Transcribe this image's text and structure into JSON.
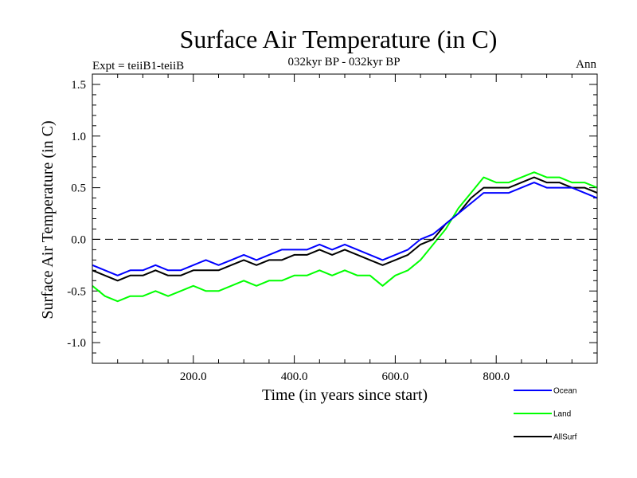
{
  "chart_data": {
    "type": "line",
    "title": "Surface Air Temperature (in C)",
    "subtitle": "032kyr BP - 032kyr BP",
    "left_label": "Expt = teiiB1-teiiB",
    "right_label": "Ann",
    "xlabel": "Time (in years since start)",
    "ylabel": "Surface Air Temperature (in C)",
    "xlim": [
      0,
      1000
    ],
    "ylim": [
      -1.2,
      1.6
    ],
    "x_ticks": [
      200,
      400,
      600,
      800
    ],
    "x_tick_labels": [
      "200.0",
      "400.0",
      "600.0",
      "800.0"
    ],
    "y_ticks": [
      -1.0,
      -0.5,
      0.0,
      0.5,
      1.0,
      1.5
    ],
    "y_tick_labels": [
      "-1.0",
      "-0.5",
      "0.0",
      "0.5",
      "1.0",
      "1.5"
    ],
    "zero_line": {
      "value": 0.0,
      "style": "dashed"
    },
    "legend_position": "bottom-right",
    "series": [
      {
        "name": "Land",
        "color": "#00ff00",
        "x": [
          0,
          25,
          50,
          75,
          100,
          125,
          150,
          175,
          200,
          225,
          250,
          275,
          300,
          325,
          350,
          375,
          400,
          425,
          450,
          475,
          500,
          525,
          550,
          575,
          600,
          625,
          650,
          675,
          700,
          725,
          750,
          775,
          800,
          825,
          850,
          875,
          900,
          925,
          950,
          975,
          1000
        ],
        "values": [
          -0.45,
          -0.55,
          -0.6,
          -0.55,
          -0.55,
          -0.5,
          -0.55,
          -0.5,
          -0.45,
          -0.5,
          -0.5,
          -0.45,
          -0.4,
          -0.45,
          -0.4,
          -0.4,
          -0.35,
          -0.35,
          -0.3,
          -0.35,
          -0.3,
          -0.35,
          -0.35,
          -0.45,
          -0.35,
          -0.3,
          -0.2,
          -0.05,
          0.1,
          0.3,
          0.45,
          0.6,
          0.55,
          0.55,
          0.6,
          0.65,
          0.6,
          0.6,
          0.55,
          0.55,
          0.5
        ]
      },
      {
        "name": "Ocean",
        "color": "#0000ff",
        "x": [
          0,
          25,
          50,
          75,
          100,
          125,
          150,
          175,
          200,
          225,
          250,
          275,
          300,
          325,
          350,
          375,
          400,
          425,
          450,
          475,
          500,
          525,
          550,
          575,
          600,
          625,
          650,
          675,
          700,
          725,
          750,
          775,
          800,
          825,
          850,
          875,
          900,
          925,
          950,
          975,
          1000
        ],
        "values": [
          -0.25,
          -0.3,
          -0.35,
          -0.3,
          -0.3,
          -0.25,
          -0.3,
          -0.3,
          -0.25,
          -0.2,
          -0.25,
          -0.2,
          -0.15,
          -0.2,
          -0.15,
          -0.1,
          -0.1,
          -0.1,
          -0.05,
          -0.1,
          -0.05,
          -0.1,
          -0.15,
          -0.2,
          -0.15,
          -0.1,
          0.0,
          0.05,
          0.15,
          0.25,
          0.35,
          0.45,
          0.45,
          0.45,
          0.5,
          0.55,
          0.5,
          0.5,
          0.5,
          0.45,
          0.4
        ]
      },
      {
        "name": "AllSurf",
        "color": "#000000",
        "x": [
          0,
          25,
          50,
          75,
          100,
          125,
          150,
          175,
          200,
          225,
          250,
          275,
          300,
          325,
          350,
          375,
          400,
          425,
          450,
          475,
          500,
          525,
          550,
          575,
          600,
          625,
          650,
          675,
          700,
          725,
          750,
          775,
          800,
          825,
          850,
          875,
          900,
          925,
          950,
          975,
          1000
        ],
        "values": [
          -0.3,
          -0.35,
          -0.4,
          -0.35,
          -0.35,
          -0.3,
          -0.35,
          -0.35,
          -0.3,
          -0.3,
          -0.3,
          -0.25,
          -0.2,
          -0.25,
          -0.2,
          -0.2,
          -0.15,
          -0.15,
          -0.1,
          -0.15,
          -0.1,
          -0.15,
          -0.2,
          -0.25,
          -0.2,
          -0.15,
          -0.05,
          0.0,
          0.15,
          0.25,
          0.4,
          0.5,
          0.5,
          0.5,
          0.55,
          0.6,
          0.55,
          0.55,
          0.5,
          0.5,
          0.45
        ]
      }
    ],
    "draw_order": [
      "AllSurf",
      "Land",
      "Ocean"
    ],
    "legend_order": [
      "Ocean",
      "Land",
      "AllSurf"
    ]
  }
}
